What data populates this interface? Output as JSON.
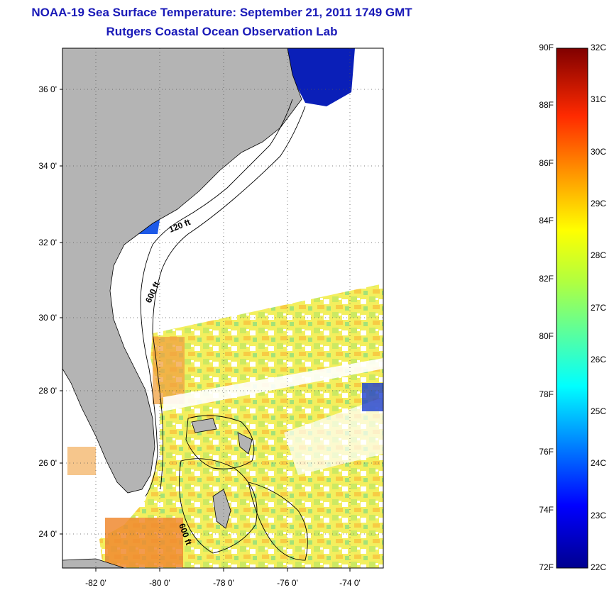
{
  "title": "NOAA-19 Sea Surface Temperature:  September 21, 2011 1749 GMT",
  "subtitle": "Rutgers Coastal Ocean Observation Lab",
  "map": {
    "lat_labels": [
      "36 0'",
      "34 0'",
      "32 0'",
      "30 0'",
      "28 0'",
      "26 0'",
      "24 0'"
    ],
    "lon_labels": [
      "-82 0'",
      "-80 0'",
      "-78 0'",
      "-76 0'",
      "-74 0'"
    ],
    "contour_labels": [
      "120 ft",
      "600 ft",
      "600 ft"
    ],
    "colors": {
      "land": "#b4b4b4",
      "ocean_nodata": "#ffffff",
      "grid": "#555555"
    }
  },
  "colorbar": {
    "f_labels": [
      "90F",
      "88F",
      "86F",
      "84F",
      "82F",
      "80F",
      "78F",
      "76F",
      "74F",
      "72F"
    ],
    "c_labels": [
      "32C",
      "31C",
      "30C",
      "29C",
      "28C",
      "27C",
      "26C",
      "25C",
      "24C",
      "23C",
      "22C"
    ],
    "range_c": [
      22,
      32
    ],
    "range_f": [
      72,
      90
    ]
  }
}
